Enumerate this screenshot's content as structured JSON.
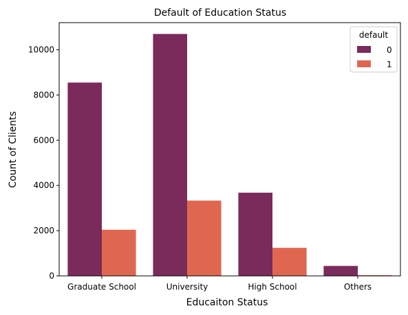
{
  "chart_data": {
    "type": "bar",
    "title": "Default of Education Status",
    "xlabel": "Educaiton Status",
    "ylabel": "Count of Clients",
    "categories": [
      "Graduate School",
      "University",
      "High School",
      "Others"
    ],
    "series": [
      {
        "name": "0",
        "color": "#7b2a5c",
        "values": [
          8550,
          10700,
          3680,
          440
        ]
      },
      {
        "name": "1",
        "color": "#e0674f",
        "values": [
          2040,
          3330,
          1240,
          30
        ]
      }
    ],
    "ylim": [
      0,
      11200
    ],
    "yticks": [
      0,
      2000,
      4000,
      6000,
      8000,
      10000
    ],
    "legend": {
      "title": "default",
      "placement": "top-right"
    },
    "grid": false
  }
}
